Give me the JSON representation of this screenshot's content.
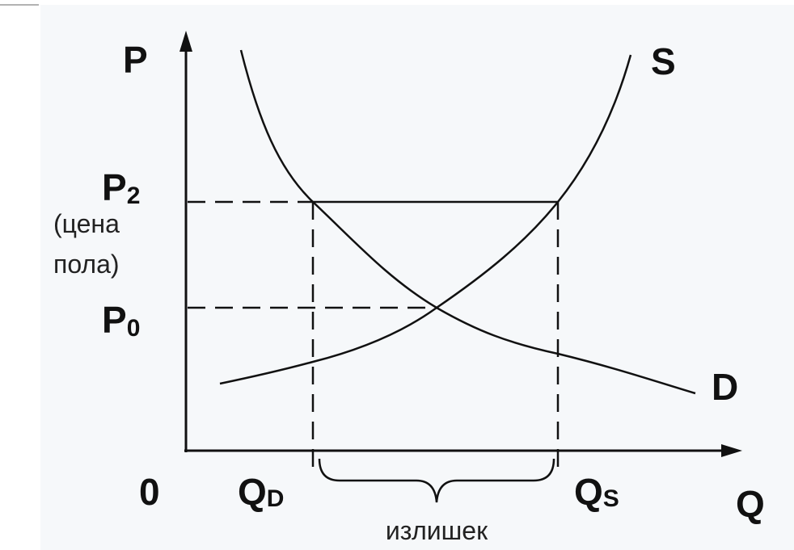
{
  "axes": {
    "y_label": "P",
    "x_label": "Q",
    "origin": "0"
  },
  "curves": {
    "supply": "S",
    "demand": "D"
  },
  "prices": {
    "floor": {
      "main": "P",
      "sub": "2",
      "note": [
        "(цена",
        "пола)"
      ]
    },
    "equilibrium": {
      "main": "P",
      "sub": "0"
    }
  },
  "quantities": {
    "demanded": {
      "main": "Q",
      "sub": "D"
    },
    "supplied": {
      "main": "Q",
      "sub": "S"
    }
  },
  "surplus": "излишек"
}
